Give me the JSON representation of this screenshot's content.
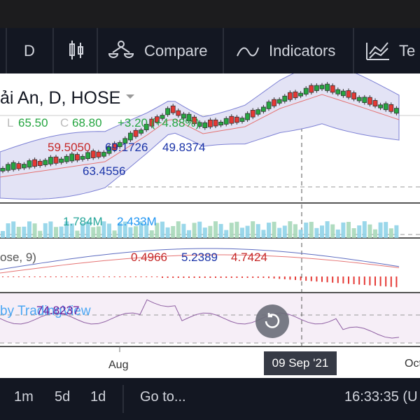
{
  "toolbar": {
    "interval": "D",
    "compare": "Compare",
    "indicators": "Indicators",
    "templates": "Te"
  },
  "legend": {
    "symbol": "ải An, D, HOSE",
    "low_label": "L",
    "low": "65.50",
    "close_label": "C",
    "close": "68.80",
    "change": "+3.20 (+4.88%)",
    "bb_values": [
      "59.5050",
      "69.1726",
      "49.8374"
    ],
    "ma_value": "63.4556",
    "volume_values": [
      "1.784M",
      "2.433M"
    ],
    "macd_name": "ose, 9)",
    "macd_values": [
      "0.4966",
      "5.2389",
      "4.7424"
    ],
    "rsi_value": "74.8237",
    "watermark": "by TradingView"
  },
  "time_axis": {
    "labels": [
      "Aug",
      "Oct"
    ],
    "crosshair_date": "09 Sep '21"
  },
  "bottom_bar": {
    "ranges": [
      "1m",
      "5d",
      "1d"
    ],
    "goto": "Go to...",
    "clock": "16:33:35 (U"
  }
}
